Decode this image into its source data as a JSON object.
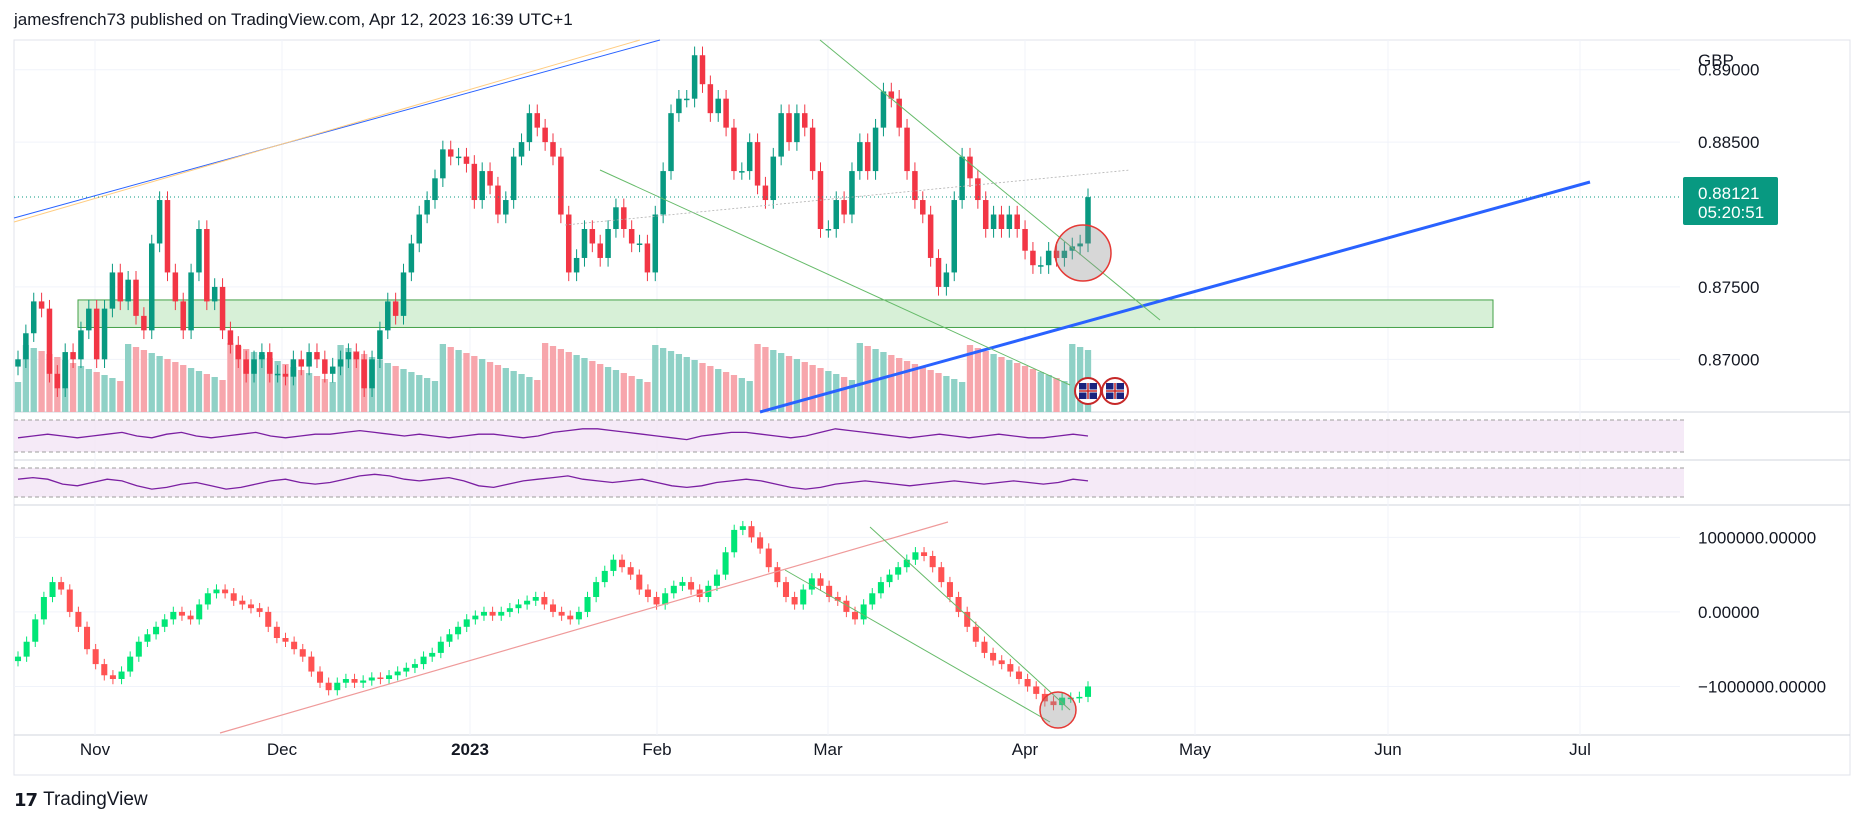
{
  "header": {
    "publisher_line": "jamesfrench73 published on TradingView.com, Apr 12, 2023 16:39 UTC+1"
  },
  "footer": {
    "brand": "TradingView",
    "brand_mark": "17"
  },
  "colors": {
    "up": "#089981",
    "down": "#f23645",
    "vol_up": "#8fd1c6",
    "vol_down": "#f7a6ac",
    "accent_label": "#089981",
    "blue_trend": "#2962ff",
    "zone_fill": "#d7f0d7",
    "zone_stroke": "#43a047",
    "osc_purple": "#7b1fa2",
    "rsi_band": "#f3e5f5",
    "lower_up": "#00e676",
    "lower_down": "#ff5252"
  },
  "chart_data": [
    {
      "type": "candlestick",
      "currency": "GBP",
      "x_ticks": [
        "Nov",
        "Dec",
        "2023",
        "Feb",
        "Mar",
        "Apr",
        "May",
        "Jun",
        "Jul"
      ],
      "y_ticks": [
        "0.89000",
        "0.88500",
        "0.87500",
        "0.87000"
      ],
      "ylim": [
        0.8665,
        0.8915
      ],
      "last_price": "0.88121",
      "countdown": "05:20:51",
      "support_zone": [
        0.8722,
        0.8741
      ],
      "closes": [
        0.87,
        0.8718,
        0.874,
        0.8735,
        0.869,
        0.868,
        0.8705,
        0.87,
        0.872,
        0.8735,
        0.87,
        0.8735,
        0.876,
        0.874,
        0.8755,
        0.873,
        0.872,
        0.878,
        0.881,
        0.876,
        0.874,
        0.872,
        0.876,
        0.879,
        0.874,
        0.875,
        0.872,
        0.871,
        0.87,
        0.869,
        0.87,
        0.8705,
        0.869,
        0.869,
        0.8688,
        0.87,
        0.8695,
        0.8705,
        0.87,
        0.869,
        0.8695,
        0.87,
        0.8705,
        0.87,
        0.868,
        0.87,
        0.872,
        0.874,
        0.873,
        0.876,
        0.878,
        0.88,
        0.881,
        0.8825,
        0.8845,
        0.884,
        0.884,
        0.8835,
        0.881,
        0.883,
        0.882,
        0.88,
        0.881,
        0.884,
        0.885,
        0.887,
        0.886,
        0.885,
        0.884,
        0.88,
        0.876,
        0.877,
        0.879,
        0.878,
        0.877,
        0.879,
        0.8805,
        0.879,
        0.878,
        0.878,
        0.876,
        0.88,
        0.883,
        0.887,
        0.888,
        0.888,
        0.891,
        0.889,
        0.887,
        0.888,
        0.886,
        0.883,
        0.883,
        0.885,
        0.882,
        0.881,
        0.884,
        0.887,
        0.885,
        0.887,
        0.886,
        0.883,
        0.879,
        0.879,
        0.881,
        0.88,
        0.883,
        0.885,
        0.883,
        0.886,
        0.8885,
        0.888,
        0.886,
        0.883,
        0.881,
        0.88,
        0.877,
        0.875,
        0.876,
        0.881,
        0.884,
        0.8825,
        0.881,
        0.879,
        0.88,
        0.879,
        0.88,
        0.879,
        0.8775,
        0.8765,
        0.8765,
        0.8775,
        0.877,
        0.8775,
        0.8778,
        0.878,
        0.8812
      ],
      "volume_shape": "alternating teal/red columns, 0–0.9 of the volume band"
    },
    {
      "type": "oscillator",
      "name": "",
      "band": true,
      "values": [
        0.45,
        0.5,
        0.55,
        0.5,
        0.45,
        0.5,
        0.55,
        0.6,
        0.5,
        0.45,
        0.55,
        0.6,
        0.5,
        0.45,
        0.5,
        0.55,
        0.6,
        0.5,
        0.45,
        0.5,
        0.55,
        0.55,
        0.6,
        0.65,
        0.6,
        0.55,
        0.5,
        0.55,
        0.5,
        0.45,
        0.5,
        0.55,
        0.55,
        0.5,
        0.45,
        0.5,
        0.6,
        0.65,
        0.7,
        0.7,
        0.65,
        0.6,
        0.55,
        0.5,
        0.45,
        0.4,
        0.5,
        0.55,
        0.6,
        0.6,
        0.55,
        0.5,
        0.45,
        0.5,
        0.6,
        0.7,
        0.65,
        0.6,
        0.55,
        0.5,
        0.45,
        0.5,
        0.55,
        0.5,
        0.45,
        0.5,
        0.55,
        0.5,
        0.45,
        0.45,
        0.5,
        0.55,
        0.5
      ]
    },
    {
      "type": "oscillator",
      "name": "",
      "band": true,
      "values": [
        0.6,
        0.65,
        0.6,
        0.45,
        0.4,
        0.5,
        0.6,
        0.55,
        0.4,
        0.3,
        0.35,
        0.45,
        0.5,
        0.4,
        0.3,
        0.35,
        0.45,
        0.55,
        0.6,
        0.5,
        0.45,
        0.5,
        0.6,
        0.7,
        0.75,
        0.7,
        0.6,
        0.55,
        0.6,
        0.65,
        0.55,
        0.4,
        0.35,
        0.45,
        0.55,
        0.6,
        0.65,
        0.7,
        0.6,
        0.55,
        0.5,
        0.55,
        0.6,
        0.5,
        0.4,
        0.35,
        0.4,
        0.5,
        0.55,
        0.6,
        0.55,
        0.45,
        0.35,
        0.3,
        0.35,
        0.45,
        0.5,
        0.55,
        0.5,
        0.45,
        0.4,
        0.45,
        0.5,
        0.55,
        0.5,
        0.45,
        0.5,
        0.55,
        0.5,
        0.45,
        0.5,
        0.6,
        0.55
      ]
    },
    {
      "type": "candlestick",
      "y_ticks": [
        "1000000.00000",
        "0.00000",
        "−1000000.00000"
      ],
      "ylim": [
        -1450000,
        1300000
      ],
      "closes": [
        -600000,
        -400000,
        -100000,
        200000,
        400000,
        300000,
        0,
        -200000,
        -500000,
        -700000,
        -850000,
        -900000,
        -800000,
        -600000,
        -400000,
        -300000,
        -200000,
        -100000,
        0,
        -50000,
        -100000,
        100000,
        250000,
        300000,
        250000,
        150000,
        100000,
        50000,
        0,
        -200000,
        -350000,
        -400000,
        -500000,
        -600000,
        -800000,
        -950000,
        -1050000,
        -950000,
        -900000,
        -950000,
        -920000,
        -880000,
        -900000,
        -850000,
        -800000,
        -750000,
        -700000,
        -600000,
        -550000,
        -400000,
        -300000,
        -200000,
        -100000,
        -50000,
        0,
        -50000,
        0,
        50000,
        100000,
        150000,
        200000,
        100000,
        0,
        -50000,
        -100000,
        0,
        200000,
        400000,
        550000,
        700000,
        600000,
        500000,
        300000,
        200000,
        100000,
        250000,
        350000,
        400000,
        300000,
        200000,
        350000,
        500000,
        800000,
        1100000,
        1150000,
        1000000,
        850000,
        600000,
        400000,
        200000,
        100000,
        300000,
        450000,
        350000,
        200000,
        150000,
        0,
        -100000,
        100000,
        250000,
        400000,
        500000,
        600000,
        700000,
        800000,
        750000,
        600000,
        400000,
        200000,
        0,
        -200000,
        -400000,
        -550000,
        -650000,
        -700000,
        -800000,
        -900000,
        -1000000,
        -1100000,
        -1200000,
        -1250000,
        -1150000,
        -1150000,
        -1140000,
        -1000000
      ]
    }
  ]
}
